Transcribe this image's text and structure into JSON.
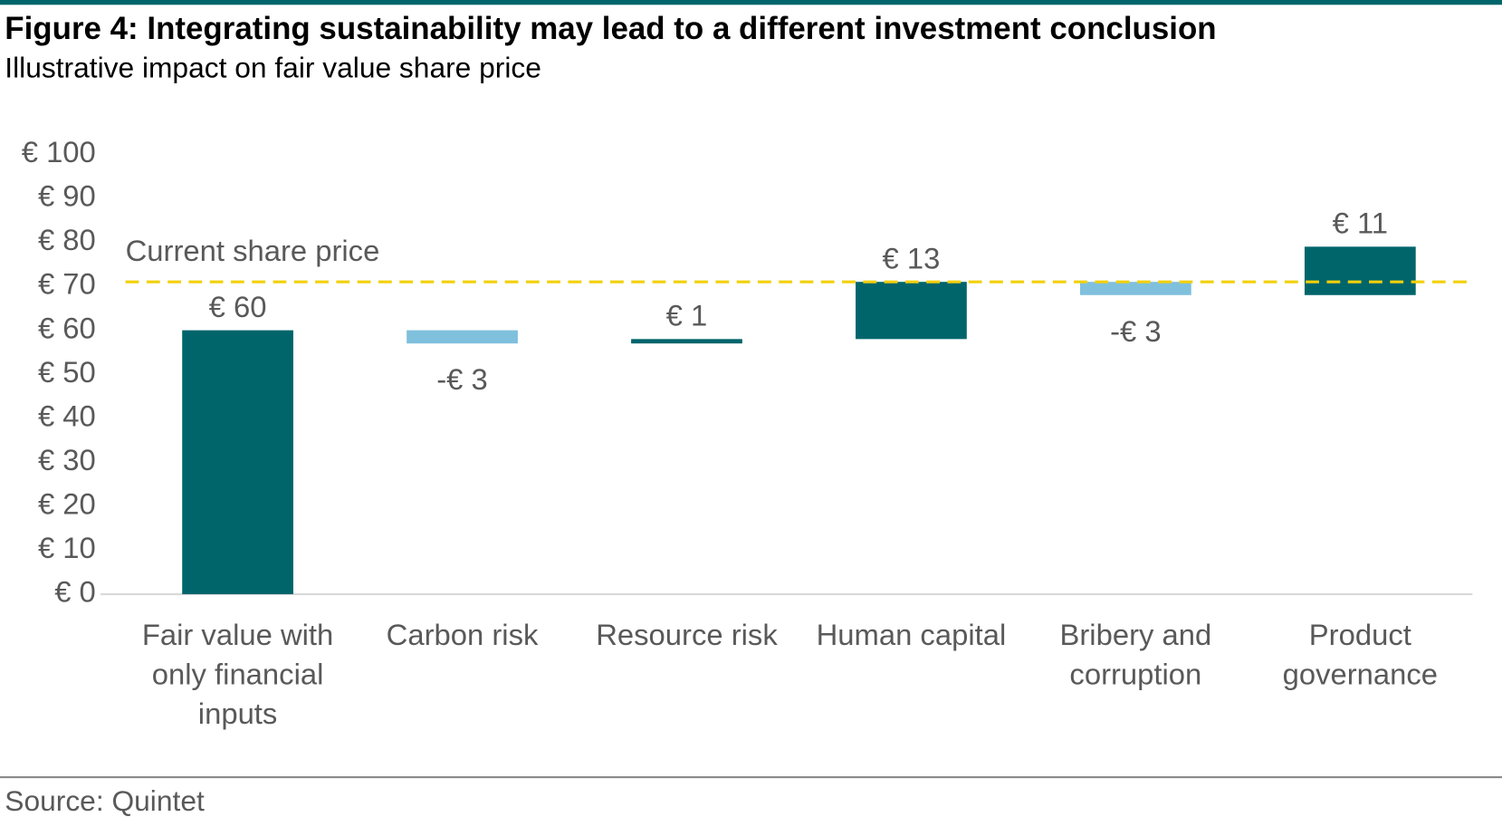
{
  "chart_data": {
    "type": "waterfall",
    "title": "Figure 4: Integrating sustainability may lead to a different investment conclusion",
    "subtitle": "Illustrative impact on fair value share price",
    "categories": [
      "Fair value with only financial inputs",
      "Carbon risk",
      "Resource risk",
      "Human capital",
      "Bribery and corruption",
      "Product governance"
    ],
    "values": [
      60,
      -3,
      1,
      13,
      -3,
      11
    ],
    "value_labels": [
      "€ 60",
      "-€ 3",
      "€ 1",
      "€ 13",
      "-€ 3",
      "€ 11"
    ],
    "color": "#00656b",
    "negative_color": "#7fc0dd",
    "ylim": [
      0,
      100
    ],
    "yticks": [
      {
        "value": 0,
        "label": "€ 0"
      },
      {
        "value": 10,
        "label": "€ 10"
      },
      {
        "value": 20,
        "label": "€ 20"
      },
      {
        "value": 30,
        "label": "€ 30"
      },
      {
        "value": 40,
        "label": "€ 40"
      },
      {
        "value": 50,
        "label": "€ 50"
      },
      {
        "value": 60,
        "label": "€ 60"
      },
      {
        "value": 70,
        "label": "€ 70"
      },
      {
        "value": 80,
        "label": "€ 80"
      },
      {
        "value": 90,
        "label": "€ 90"
      },
      {
        "value": 100,
        "label": "€ 100"
      }
    ],
    "grid": false,
    "reference_line": {
      "label": "Current share price",
      "value": 71,
      "color": "#f2d00a"
    },
    "source": "Source: Quintet"
  }
}
